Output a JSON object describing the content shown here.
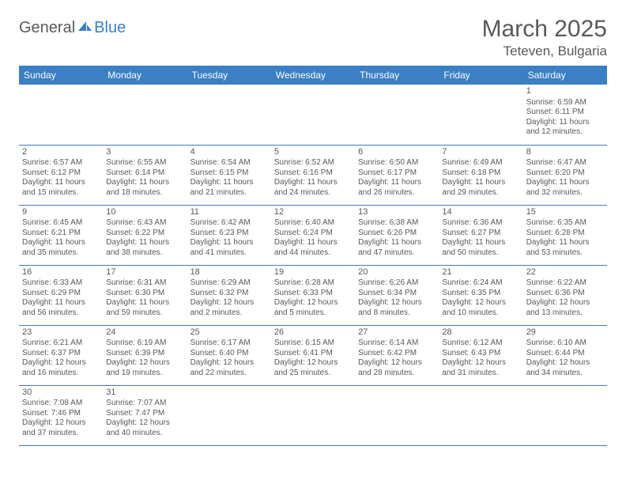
{
  "logo": {
    "part1": "General",
    "part2": "Blue"
  },
  "title": "March 2025",
  "location": "Teteven, Bulgaria",
  "colors": {
    "header_bg": "#3b7fc4",
    "header_text": "#ffffff",
    "text": "#595959",
    "border": "#3b7fc4",
    "logo_gray": "#5a5a5a",
    "logo_blue": "#3b7fc4"
  },
  "weekdays": [
    "Sunday",
    "Monday",
    "Tuesday",
    "Wednesday",
    "Thursday",
    "Friday",
    "Saturday"
  ],
  "weeks": [
    [
      null,
      null,
      null,
      null,
      null,
      null,
      {
        "d": "1",
        "sr": "6:59 AM",
        "ss": "6:11 PM",
        "dl": "11 hours and 12 minutes."
      }
    ],
    [
      {
        "d": "2",
        "sr": "6:57 AM",
        "ss": "6:12 PM",
        "dl": "11 hours and 15 minutes."
      },
      {
        "d": "3",
        "sr": "6:55 AM",
        "ss": "6:14 PM",
        "dl": "11 hours and 18 minutes."
      },
      {
        "d": "4",
        "sr": "6:54 AM",
        "ss": "6:15 PM",
        "dl": "11 hours and 21 minutes."
      },
      {
        "d": "5",
        "sr": "6:52 AM",
        "ss": "6:16 PM",
        "dl": "11 hours and 24 minutes."
      },
      {
        "d": "6",
        "sr": "6:50 AM",
        "ss": "6:17 PM",
        "dl": "11 hours and 26 minutes."
      },
      {
        "d": "7",
        "sr": "6:49 AM",
        "ss": "6:18 PM",
        "dl": "11 hours and 29 minutes."
      },
      {
        "d": "8",
        "sr": "6:47 AM",
        "ss": "6:20 PM",
        "dl": "11 hours and 32 minutes."
      }
    ],
    [
      {
        "d": "9",
        "sr": "6:45 AM",
        "ss": "6:21 PM",
        "dl": "11 hours and 35 minutes."
      },
      {
        "d": "10",
        "sr": "6:43 AM",
        "ss": "6:22 PM",
        "dl": "11 hours and 38 minutes."
      },
      {
        "d": "11",
        "sr": "6:42 AM",
        "ss": "6:23 PM",
        "dl": "11 hours and 41 minutes."
      },
      {
        "d": "12",
        "sr": "6:40 AM",
        "ss": "6:24 PM",
        "dl": "11 hours and 44 minutes."
      },
      {
        "d": "13",
        "sr": "6:38 AM",
        "ss": "6:26 PM",
        "dl": "11 hours and 47 minutes."
      },
      {
        "d": "14",
        "sr": "6:36 AM",
        "ss": "6:27 PM",
        "dl": "11 hours and 50 minutes."
      },
      {
        "d": "15",
        "sr": "6:35 AM",
        "ss": "6:28 PM",
        "dl": "11 hours and 53 minutes."
      }
    ],
    [
      {
        "d": "16",
        "sr": "6:33 AM",
        "ss": "6:29 PM",
        "dl": "11 hours and 56 minutes."
      },
      {
        "d": "17",
        "sr": "6:31 AM",
        "ss": "6:30 PM",
        "dl": "11 hours and 59 minutes."
      },
      {
        "d": "18",
        "sr": "6:29 AM",
        "ss": "6:32 PM",
        "dl": "12 hours and 2 minutes."
      },
      {
        "d": "19",
        "sr": "6:28 AM",
        "ss": "6:33 PM",
        "dl": "12 hours and 5 minutes."
      },
      {
        "d": "20",
        "sr": "6:26 AM",
        "ss": "6:34 PM",
        "dl": "12 hours and 8 minutes."
      },
      {
        "d": "21",
        "sr": "6:24 AM",
        "ss": "6:35 PM",
        "dl": "12 hours and 10 minutes."
      },
      {
        "d": "22",
        "sr": "6:22 AM",
        "ss": "6:36 PM",
        "dl": "12 hours and 13 minutes."
      }
    ],
    [
      {
        "d": "23",
        "sr": "6:21 AM",
        "ss": "6:37 PM",
        "dl": "12 hours and 16 minutes."
      },
      {
        "d": "24",
        "sr": "6:19 AM",
        "ss": "6:39 PM",
        "dl": "12 hours and 19 minutes."
      },
      {
        "d": "25",
        "sr": "6:17 AM",
        "ss": "6:40 PM",
        "dl": "12 hours and 22 minutes."
      },
      {
        "d": "26",
        "sr": "6:15 AM",
        "ss": "6:41 PM",
        "dl": "12 hours and 25 minutes."
      },
      {
        "d": "27",
        "sr": "6:14 AM",
        "ss": "6:42 PM",
        "dl": "12 hours and 28 minutes."
      },
      {
        "d": "28",
        "sr": "6:12 AM",
        "ss": "6:43 PM",
        "dl": "12 hours and 31 minutes."
      },
      {
        "d": "29",
        "sr": "6:10 AM",
        "ss": "6:44 PM",
        "dl": "12 hours and 34 minutes."
      }
    ],
    [
      {
        "d": "30",
        "sr": "7:08 AM",
        "ss": "7:46 PM",
        "dl": "12 hours and 37 minutes."
      },
      {
        "d": "31",
        "sr": "7:07 AM",
        "ss": "7:47 PM",
        "dl": "12 hours and 40 minutes."
      },
      null,
      null,
      null,
      null,
      null
    ]
  ],
  "labels": {
    "sunrise": "Sunrise:",
    "sunset": "Sunset:",
    "daylight": "Daylight:"
  }
}
